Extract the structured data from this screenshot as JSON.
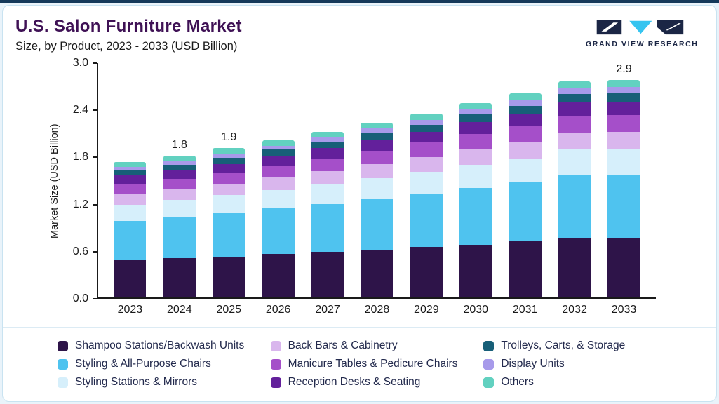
{
  "header": {
    "title": "U.S. Salon Furniture Market",
    "subtitle": "Size, by Product, 2023 - 2033 (USD Billion)",
    "brand": "GRAND VIEW RESEARCH"
  },
  "chart_data": {
    "type": "bar",
    "stacked": true,
    "title": "U.S. Salon Furniture Market Size, by Product, 2023 - 2033 (USD Billion)",
    "xlabel": "",
    "ylabel": "Market Size (USD Billion)",
    "ylim": [
      0,
      3.0
    ],
    "ytick_labels": [
      "0.0",
      "0.6",
      "1.2",
      "1.8",
      "2.4",
      "3.0"
    ],
    "grid": false,
    "legend_position": "bottom",
    "categories": [
      "2023",
      "2024",
      "2025",
      "2026",
      "2027",
      "2028",
      "2029",
      "2030",
      "2031",
      "2032",
      "2033"
    ],
    "annotations": [
      {
        "year": "2024",
        "label": "1.8"
      },
      {
        "year": "2025",
        "label": "1.9"
      },
      {
        "year": "2033",
        "label": "2.9"
      }
    ],
    "series": [
      {
        "name": "Shampoo Stations/Backwash Units",
        "color": "#2e1449",
        "values": [
          0.47,
          0.5,
          0.52,
          0.55,
          0.58,
          0.61,
          0.64,
          0.67,
          0.71,
          0.75,
          0.79
        ]
      },
      {
        "name": "Styling & All-Purpose Chairs",
        "color": "#4fc3ef",
        "values": [
          0.5,
          0.52,
          0.55,
          0.58,
          0.61,
          0.64,
          0.68,
          0.72,
          0.75,
          0.8,
          0.84
        ]
      },
      {
        "name": "Styling Stations & Mirrors",
        "color": "#d6effb",
        "values": [
          0.21,
          0.22,
          0.23,
          0.24,
          0.25,
          0.27,
          0.28,
          0.3,
          0.31,
          0.33,
          0.35
        ]
      },
      {
        "name": "Back Bars & Cabinetry",
        "color": "#d9b6ed",
        "values": [
          0.14,
          0.14,
          0.15,
          0.16,
          0.17,
          0.18,
          0.19,
          0.2,
          0.21,
          0.22,
          0.23
        ]
      },
      {
        "name": "Manicure Tables & Pedicure Chairs",
        "color": "#a54fc9",
        "values": [
          0.13,
          0.13,
          0.14,
          0.15,
          0.16,
          0.17,
          0.18,
          0.19,
          0.2,
          0.21,
          0.22
        ]
      },
      {
        "name": "Reception Desks & Seating",
        "color": "#63209b",
        "values": [
          0.1,
          0.11,
          0.11,
          0.12,
          0.13,
          0.13,
          0.14,
          0.15,
          0.16,
          0.17,
          0.18
        ]
      },
      {
        "name": "Trolleys, Carts, & Storage",
        "color": "#175f78",
        "values": [
          0.07,
          0.07,
          0.08,
          0.08,
          0.08,
          0.09,
          0.09,
          0.1,
          0.1,
          0.11,
          0.12
        ]
      },
      {
        "name": "Display Units",
        "color": "#a79aea",
        "values": [
          0.04,
          0.05,
          0.05,
          0.05,
          0.06,
          0.06,
          0.06,
          0.06,
          0.07,
          0.07,
          0.08
        ]
      },
      {
        "name": "Others",
        "color": "#62d1c0",
        "values": [
          0.06,
          0.06,
          0.07,
          0.07,
          0.07,
          0.07,
          0.08,
          0.08,
          0.09,
          0.09,
          0.09
        ]
      }
    ]
  },
  "colors": {
    "accent_top_line": "#15395a",
    "title": "#3f1155",
    "logo_navy": "#1b2645",
    "logo_cyan": "#35c4f0",
    "card_border": "#c9e3f1",
    "page_background": "#e9f3fa"
  }
}
